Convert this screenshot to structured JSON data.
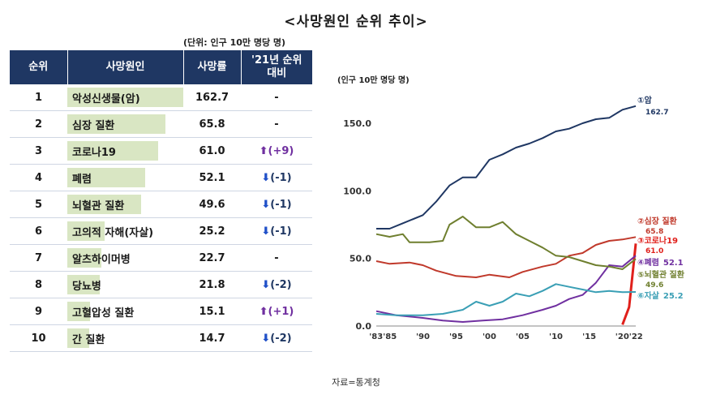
{
  "title": "<사망원인 순위 추이>",
  "unit_note": "(단위: 인구 10만 명당 명)",
  "source": "자료=통계청",
  "table": {
    "headers": [
      "순위",
      "사망원인",
      "사망률",
      "'21년 순위 대비"
    ],
    "rows": [
      {
        "rank": "1",
        "cause": "악성신생물(암)",
        "rate": "162.7",
        "change": "-",
        "dir": "none",
        "rate_value": 162.7
      },
      {
        "rank": "2",
        "cause": "심장 질환",
        "rate": "65.8",
        "change": "-",
        "dir": "none",
        "rate_value": 65.8
      },
      {
        "rank": "3",
        "cause": "코로나19",
        "rate": "61.0",
        "change": "(+9)",
        "dir": "up",
        "rate_value": 61.0
      },
      {
        "rank": "4",
        "cause": "폐렴",
        "rate": "52.1",
        "change": "(-1)",
        "dir": "down",
        "rate_value": 52.1
      },
      {
        "rank": "5",
        "cause": "뇌혈관 질환",
        "rate": "49.6",
        "change": "(-1)",
        "dir": "down",
        "rate_value": 49.6
      },
      {
        "rank": "6",
        "cause": "고의적 자해(자살)",
        "rate": "25.2",
        "change": "(-1)",
        "dir": "down",
        "rate_value": 25.2
      },
      {
        "rank": "7",
        "cause": "알츠하이머병",
        "rate": "22.7",
        "change": "-",
        "dir": "none",
        "rate_value": 22.7
      },
      {
        "rank": "8",
        "cause": "당뇨병",
        "rate": "21.8",
        "change": "(-2)",
        "dir": "down",
        "rate_value": 21.8
      },
      {
        "rank": "9",
        "cause": "고혈압성 질환",
        "rate": "15.1",
        "change": "(+1)",
        "dir": "up",
        "rate_value": 15.1
      },
      {
        "rank": "10",
        "cause": "간 질환",
        "rate": "14.7",
        "change": "(-2)",
        "dir": "down",
        "rate_value": 14.7
      }
    ]
  },
  "chart_data": {
    "type": "line",
    "ylabel": "(인구 10만 명당 명)",
    "xlim": [
      1983,
      2022
    ],
    "ylim": [
      0,
      180
    ],
    "y_ticks": [
      "0.0",
      "50.0",
      "100.0",
      "150.0"
    ],
    "y_tick_values": [
      0,
      50,
      100,
      150
    ],
    "x_ticks": [
      "'83'85",
      "'90",
      "'95",
      "'00",
      "'05",
      "'10",
      "'15",
      "'20'22"
    ],
    "x_tick_values": [
      1984,
      1990,
      1995,
      2000,
      2005,
      2010,
      2015,
      2021
    ],
    "series": [
      {
        "name": "①암",
        "value_label": "162.7",
        "color": "#1f3763",
        "points": [
          [
            1983,
            72
          ],
          [
            1985,
            72
          ],
          [
            1987,
            76
          ],
          [
            1990,
            82
          ],
          [
            1992,
            92
          ],
          [
            1994,
            104
          ],
          [
            1996,
            110
          ],
          [
            1998,
            110
          ],
          [
            2000,
            123
          ],
          [
            2002,
            127
          ],
          [
            2004,
            132
          ],
          [
            2006,
            135
          ],
          [
            2008,
            139
          ],
          [
            2010,
            144
          ],
          [
            2012,
            146
          ],
          [
            2014,
            150
          ],
          [
            2016,
            153
          ],
          [
            2018,
            154
          ],
          [
            2020,
            160
          ],
          [
            2022,
            162.7
          ]
        ]
      },
      {
        "name": "②심장 질환",
        "value_label": "65.8",
        "color": "#c0392b",
        "points": [
          [
            1983,
            48
          ],
          [
            1985,
            46
          ],
          [
            1988,
            47
          ],
          [
            1990,
            45
          ],
          [
            1992,
            41
          ],
          [
            1995,
            37
          ],
          [
            1998,
            36
          ],
          [
            2000,
            38
          ],
          [
            2003,
            36
          ],
          [
            2005,
            40
          ],
          [
            2008,
            44
          ],
          [
            2010,
            46
          ],
          [
            2012,
            52
          ],
          [
            2014,
            54
          ],
          [
            2016,
            60
          ],
          [
            2018,
            63
          ],
          [
            2020,
            64
          ],
          [
            2022,
            65.8
          ]
        ]
      },
      {
        "name": "③코로나19",
        "value_label": "61.0",
        "color": "#e0201b",
        "bold": true,
        "points": [
          [
            2020,
            1
          ],
          [
            2021,
            14
          ],
          [
            2022,
            61
          ]
        ]
      },
      {
        "name": "④폐렴",
        "value_label": "52.1",
        "color": "#7030a0",
        "points": [
          [
            1983,
            11
          ],
          [
            1986,
            8
          ],
          [
            1990,
            6
          ],
          [
            1993,
            4
          ],
          [
            1996,
            3
          ],
          [
            1999,
            4
          ],
          [
            2002,
            5
          ],
          [
            2005,
            8
          ],
          [
            2008,
            12
          ],
          [
            2010,
            15
          ],
          [
            2012,
            20
          ],
          [
            2014,
            23
          ],
          [
            2016,
            32
          ],
          [
            2018,
            45
          ],
          [
            2020,
            44
          ],
          [
            2022,
            52.1
          ]
        ]
      },
      {
        "name": "⑤뇌혈관 질환",
        "value_label": "49.6",
        "color": "#6f7f2f",
        "points": [
          [
            1983,
            68
          ],
          [
            1985,
            66
          ],
          [
            1987,
            68
          ],
          [
            1988,
            62
          ],
          [
            1991,
            62
          ],
          [
            1993,
            63
          ],
          [
            1994,
            75
          ],
          [
            1996,
            81
          ],
          [
            1998,
            73
          ],
          [
            2000,
            73
          ],
          [
            2002,
            77
          ],
          [
            2004,
            68
          ],
          [
            2006,
            63
          ],
          [
            2008,
            58
          ],
          [
            2010,
            52
          ],
          [
            2012,
            51
          ],
          [
            2014,
            48
          ],
          [
            2016,
            45
          ],
          [
            2018,
            44
          ],
          [
            2020,
            42
          ],
          [
            2022,
            49.6
          ]
        ]
      },
      {
        "name": "⑥자살",
        "value_label": "25.2",
        "color": "#3a9fb5",
        "points": [
          [
            1983,
            9
          ],
          [
            1986,
            8
          ],
          [
            1990,
            8
          ],
          [
            1993,
            9
          ],
          [
            1996,
            12
          ],
          [
            1998,
            18
          ],
          [
            2000,
            15
          ],
          [
            2002,
            18
          ],
          [
            2004,
            24
          ],
          [
            2006,
            22
          ],
          [
            2008,
            26
          ],
          [
            2010,
            31
          ],
          [
            2012,
            29
          ],
          [
            2014,
            27
          ],
          [
            2016,
            25
          ],
          [
            2018,
            26
          ],
          [
            2020,
            25
          ],
          [
            2022,
            25.2
          ]
        ]
      }
    ]
  }
}
